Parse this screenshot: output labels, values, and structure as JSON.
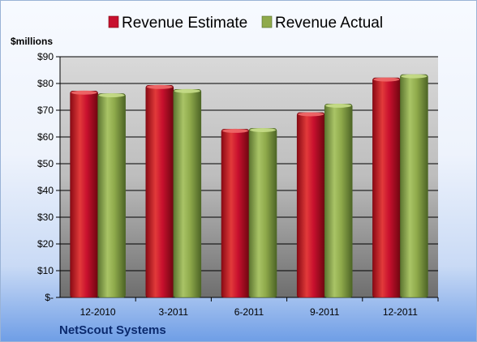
{
  "chart_data": {
    "type": "bar",
    "title": "",
    "ylabel": "$millions",
    "xlabel": "",
    "categories": [
      "12-2010",
      "3-2011",
      "6-2011",
      "9-2011",
      "12-2011"
    ],
    "series": [
      {
        "name": "Revenue Estimate",
        "values": [
          77.2,
          79.3,
          62.9,
          69.1,
          82.1
        ],
        "color": "#c8102e"
      },
      {
        "name": "Revenue Actual",
        "values": [
          76.2,
          77.8,
          63.2,
          72.3,
          83.3
        ],
        "color": "#8faa4b"
      }
    ],
    "ylim": [
      0,
      90
    ],
    "yticks": [
      {
        "value": 0,
        "label": "$-"
      },
      {
        "value": 10,
        "label": "$10"
      },
      {
        "value": 20,
        "label": "$20"
      },
      {
        "value": 30,
        "label": "$30"
      },
      {
        "value": 40,
        "label": "$40"
      },
      {
        "value": 50,
        "label": "$50"
      },
      {
        "value": 60,
        "label": "$60"
      },
      {
        "value": 70,
        "label": "$70"
      },
      {
        "value": 80,
        "label": "$80"
      },
      {
        "value": 90,
        "label": "$90"
      }
    ],
    "grid": true,
    "legend": "top-center"
  },
  "company": "NetScout Systems"
}
